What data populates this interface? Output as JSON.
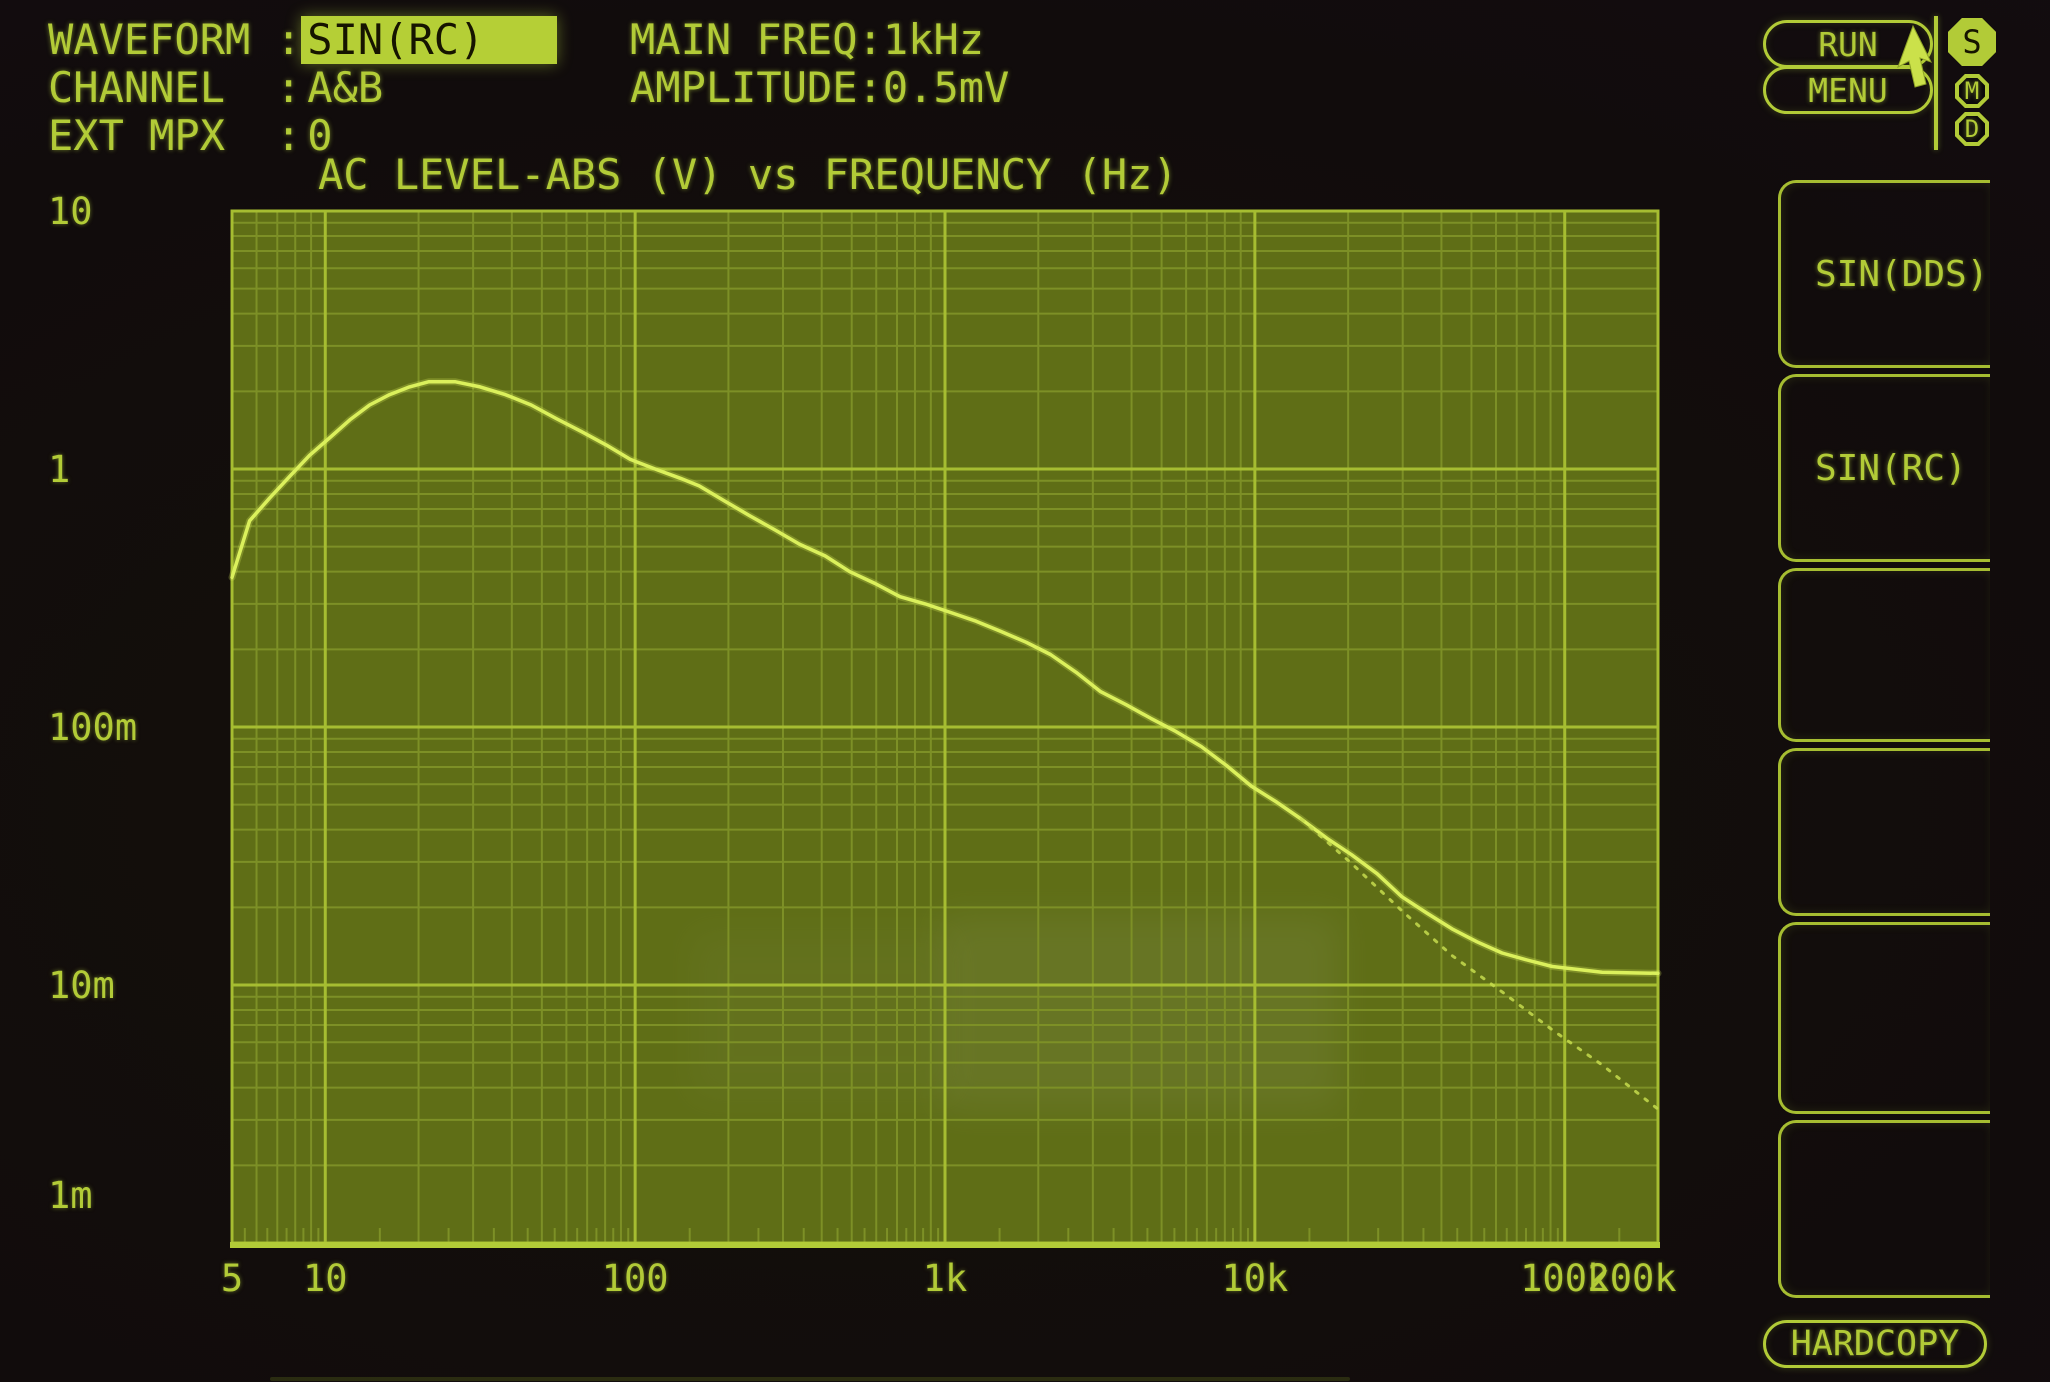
{
  "params": {
    "separator": ":",
    "rows": [
      {
        "label": "WAVEFORM",
        "value": "SIN(RC)",
        "highlighted": true
      },
      {
        "label": "CHANNEL",
        "value": "A&B",
        "highlighted": false
      },
      {
        "label": "EXT MPX",
        "value": "0",
        "highlighted": false
      }
    ]
  },
  "settings": {
    "separator": ":",
    "rows": [
      {
        "label": "MAIN FREQ",
        "value": "1kHz"
      },
      {
        "label": "AMPLITUDE",
        "value": "0.5mV"
      }
    ]
  },
  "controls": {
    "run_label": "RUN",
    "menu_label": "MENU",
    "hardcopy_label": "HARDCOPY",
    "badges": [
      {
        "label": "S",
        "active": true
      },
      {
        "label": "M",
        "active": false
      },
      {
        "label": "D",
        "active": false
      }
    ]
  },
  "softkeys": [
    {
      "label": "SIN(DDS)"
    },
    {
      "label": "SIN(RC)"
    },
    {
      "label": ""
    },
    {
      "label": ""
    },
    {
      "label": ""
    },
    {
      "label": ""
    }
  ],
  "colors": {
    "phosphor": "#b2cb37",
    "bright_trace": "#dbf05c",
    "dim_trace": "#c6dc4e",
    "plot_fill": "#5f6e16",
    "grid_minor": "#7d9026",
    "grid_major": "#a6bd31",
    "highlight_bg": "#b5cf36",
    "highlight_text": "#161400",
    "screen_bg": "#0d0a0b"
  },
  "chart_data": {
    "type": "line",
    "title": "AC LEVEL-ABS (V) vs FREQUENCY (Hz)",
    "x_axis": {
      "scale": "log",
      "min": 5,
      "max": 200000,
      "label": "FREQUENCY (Hz)",
      "ticks": [
        {
          "label": "5",
          "f": 5,
          "dx": 0
        },
        {
          "label": "10",
          "f": 10,
          "dx": 0
        },
        {
          "label": "100",
          "f": 100,
          "dx": 0
        },
        {
          "label": "1k",
          "f": 1000,
          "dx": 0
        },
        {
          "label": "10k",
          "f": 10000,
          "dx": 0
        },
        {
          "label": "100k",
          "f": 100000,
          "dx": 0
        },
        {
          "label": "200k",
          "f": 200000,
          "dx": -26
        }
      ]
    },
    "y_axis": {
      "scale": "log",
      "min": 0.001,
      "max": 10,
      "label": "AC LEVEL-ABS (V)",
      "ticks": [
        {
          "label": "10",
          "v": 10,
          "dy": 0
        },
        {
          "label": "1",
          "v": 1,
          "dy": 0
        },
        {
          "label": "100m",
          "v": 0.1,
          "dy": 0
        },
        {
          "label": "10m",
          "v": 0.01,
          "dy": 0
        },
        {
          "label": "1m",
          "v": 0.001,
          "dy": -48
        }
      ]
    },
    "grid": "log-minor-both-axes",
    "legend": "none",
    "series": [
      {
        "name": "level-trace",
        "style": "solid",
        "points": [
          [
            5,
            0.38
          ],
          [
            5.7,
            0.63
          ],
          [
            6.6,
            0.77
          ],
          [
            7.7,
            0.94
          ],
          [
            8.9,
            1.13
          ],
          [
            10.4,
            1.33
          ],
          [
            12,
            1.55
          ],
          [
            13.9,
            1.77
          ],
          [
            16.1,
            1.94
          ],
          [
            18.7,
            2.08
          ],
          [
            21.6,
            2.18
          ],
          [
            26.2,
            2.18
          ],
          [
            31.6,
            2.08
          ],
          [
            38.2,
            1.94
          ],
          [
            46.2,
            1.77
          ],
          [
            55.6,
            1.57
          ],
          [
            66.9,
            1.4
          ],
          [
            80.6,
            1.24
          ],
          [
            96.3,
            1.09
          ],
          [
            116,
            1.0
          ],
          [
            140,
            0.92
          ],
          [
            161,
            0.86
          ],
          [
            195,
            0.75
          ],
          [
            234,
            0.66
          ],
          [
            283,
            0.58
          ],
          [
            340,
            0.51
          ],
          [
            411,
            0.46
          ],
          [
            493,
            0.4
          ],
          [
            595,
            0.36
          ],
          [
            716,
            0.32
          ],
          [
            863,
            0.3
          ],
          [
            1040,
            0.278
          ],
          [
            1260,
            0.257
          ],
          [
            1510,
            0.235
          ],
          [
            1830,
            0.213
          ],
          [
            2190,
            0.191
          ],
          [
            2650,
            0.163
          ],
          [
            3180,
            0.137
          ],
          [
            3840,
            0.122
          ],
          [
            4620,
            0.108
          ],
          [
            5570,
            0.096
          ],
          [
            6710,
            0.084
          ],
          [
            8090,
            0.071
          ],
          [
            9740,
            0.059
          ],
          [
            11800,
            0.051
          ],
          [
            14100,
            0.044
          ],
          [
            17100,
            0.037
          ],
          [
            20500,
            0.032
          ],
          [
            24800,
            0.027
          ],
          [
            29800,
            0.022
          ],
          [
            35900,
            0.019
          ],
          [
            43300,
            0.0165
          ],
          [
            52100,
            0.0147
          ],
          [
            62800,
            0.0133
          ],
          [
            75600,
            0.0125
          ],
          [
            91200,
            0.0118
          ],
          [
            132000,
            0.0112
          ],
          [
            200000,
            0.0111
          ]
        ]
      },
      {
        "name": "level-trace-secondary",
        "style": "dotted",
        "points": [
          [
            14100,
            0.044
          ],
          [
            20500,
            0.0296
          ],
          [
            29800,
            0.0194
          ],
          [
            43300,
            0.013
          ],
          [
            62800,
            0.0094
          ],
          [
            91200,
            0.0067
          ],
          [
            132000,
            0.0049
          ],
          [
            200000,
            0.0033
          ]
        ]
      }
    ]
  }
}
